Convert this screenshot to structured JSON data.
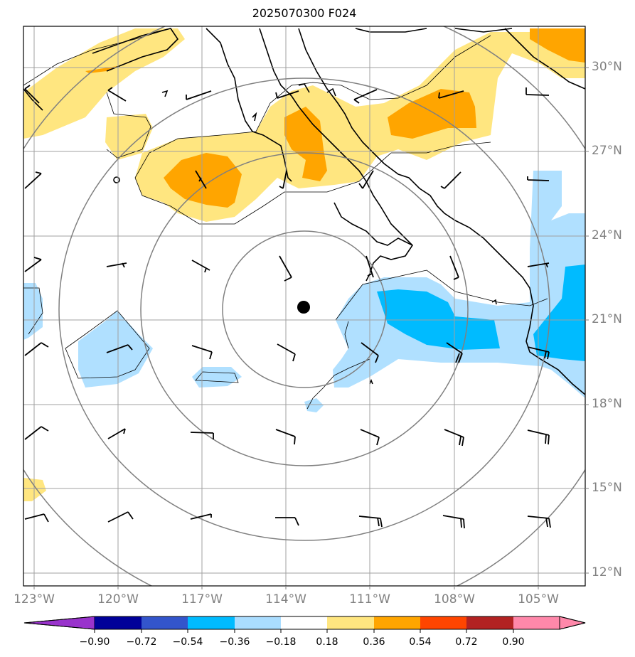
{
  "title": "2025070300 F024",
  "lat_ticks": [
    "30°N",
    "27°N",
    "24°N",
    "21°N",
    "18°N",
    "15°N",
    "12°N"
  ],
  "lon_ticks": [
    "123°W",
    "120°W",
    "117°W",
    "114°W",
    "111°W",
    "108°W",
    "105°W"
  ],
  "colorbar": {
    "ticks": [
      "−0.90",
      "−0.72",
      "−0.54",
      "−0.36",
      "−0.18",
      "0.18",
      "0.36",
      "0.54",
      "0.72",
      "0.90"
    ],
    "colors": [
      "#9933cc",
      "#000099",
      "#3355cc",
      "#00bbff",
      "#aaddff",
      "#ffffff",
      "#ffe680",
      "#ffa500",
      "#ff4500",
      "#b22222",
      "#ff88aa"
    ],
    "extend": "both"
  },
  "storm_center": {
    "lon": -113.4,
    "lat": 21.5
  },
  "range_rings_count": 4,
  "colors": {
    "grid": "#a0a0a0",
    "ring": "#808080",
    "coast": "#000000",
    "label": "#808080"
  }
}
